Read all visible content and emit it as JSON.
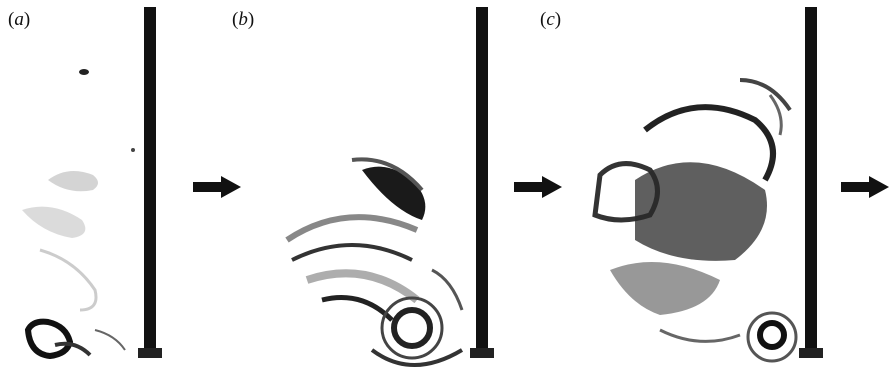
{
  "figure": {
    "panels": [
      {
        "id": "a",
        "label_open": "(",
        "label_letter": "a",
        "label_close": ")"
      },
      {
        "id": "b",
        "label_open": "(",
        "label_letter": "b",
        "label_close": ")"
      },
      {
        "id": "c",
        "label_open": "(",
        "label_letter": "c",
        "label_close": ")"
      }
    ],
    "arrow_count": 3,
    "colors": {
      "ink": "#111111",
      "smoke": "#2a2a2a",
      "background": "#ffffff"
    }
  }
}
